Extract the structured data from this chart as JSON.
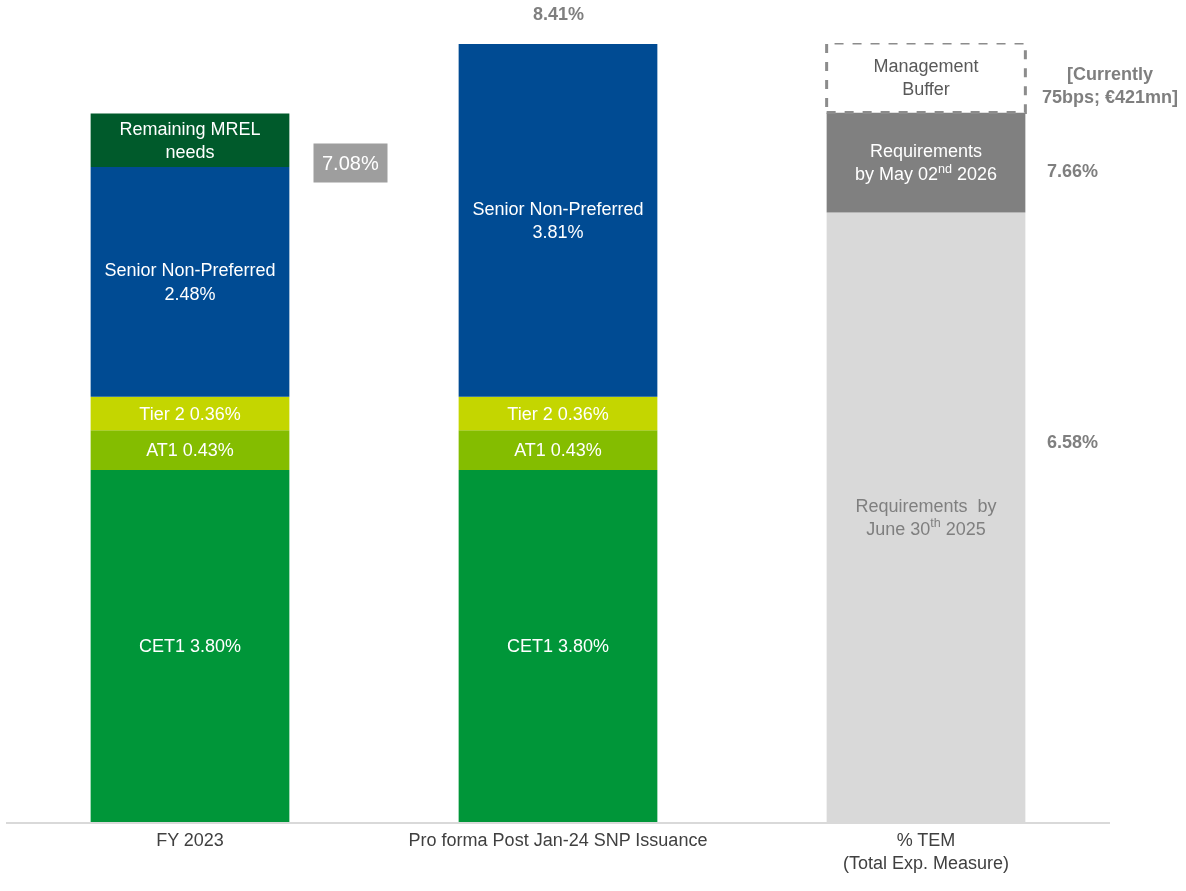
{
  "chart_data": {
    "type": "bar",
    "stacked": true,
    "data_labels": false,
    "categories": [
      "FY 2023",
      "Pro forma Post Jan-24 SNP Issuance",
      "% TEM\n(Total Exp. Measure)"
    ],
    "series": [
      {
        "color": "#009639",
        "values": [
          3.8,
          3.8,
          null
        ],
        "value_labels": [
          "CET1 3.80%",
          "CET1 3.80%",
          null
        ]
      },
      {
        "color": "#84bd00",
        "values": [
          0.43,
          0.43,
          null
        ],
        "value_labels": [
          "AT1 0.43%",
          "AT1 0.43%",
          null
        ]
      },
      {
        "color": "#c4d600",
        "values": [
          0.36,
          0.36,
          null
        ],
        "value_labels": [
          "Tier 2 0.36%",
          "Tier 2 0.36%",
          null
        ]
      },
      {
        "color": "#004b93",
        "values": [
          2.48,
          3.81,
          null
        ],
        "value_labels": [
          "Senior Non-Preferred\n2.48%",
          "Senior Non-Preferred\n3.81%",
          null
        ]
      },
      {
        "color": "#005a2b",
        "values": [
          0.58,
          null,
          null
        ],
        "value_labels": [
          "Remaining MREL\nneeds",
          null,
          null
        ]
      },
      {
        "color": "#d9d9d9",
        "values": [
          null,
          null,
          6.58
        ],
        "value_labels": [
          null,
          null,
          "Requirements  by\nJune 30$^{th}$ 2025"
        ]
      },
      {
        "color": "#808080",
        "values": [
          null,
          null,
          1.08
        ],
        "value_labels": [
          null,
          null,
          "Requirements\nby May 02$^{nd}$ 2026"
        ]
      },
      {
        "color": "#ffffff",
        "line_style": "dashed",
        "values": [
          null,
          null,
          0.75
        ],
        "value_labels": [
          null,
          null,
          "Management\nBuffer"
        ]
      }
    ],
    "annotations": [
      "7.08%",
      "8.41%",
      "7.66%",
      "6.58%",
      "[Currently\n75bps; €421mn]"
    ]
  }
}
